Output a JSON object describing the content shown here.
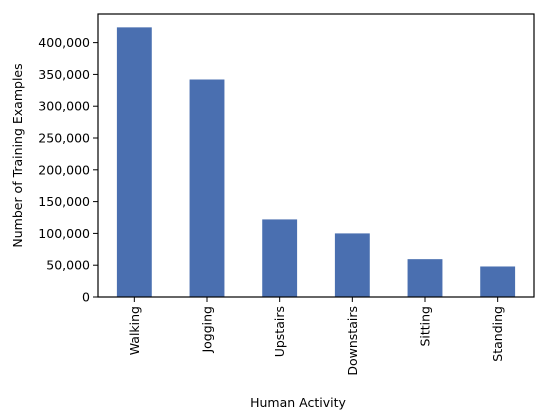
{
  "chart_data": {
    "type": "bar",
    "title": "",
    "xlabel": "Human Activity",
    "ylabel": "Number of Training Examples",
    "categories": [
      "Walking",
      "Jogging",
      "Upstairs",
      "Downstairs",
      "Sitting",
      "Standing"
    ],
    "values": [
      424000,
      342000,
      122000,
      100000,
      59500,
      48000
    ],
    "ylim": [
      0,
      445000
    ],
    "yticks": [
      0,
      50000,
      100000,
      150000,
      200000,
      250000,
      300000,
      350000,
      400000
    ],
    "ytick_labels": [
      "0",
      "50,000",
      "100,000",
      "150,000",
      "200,000",
      "250,000",
      "300,000",
      "350,000",
      "400,000"
    ],
    "bar_color": "#4a6fb0",
    "grid": false,
    "legend": "none"
  }
}
